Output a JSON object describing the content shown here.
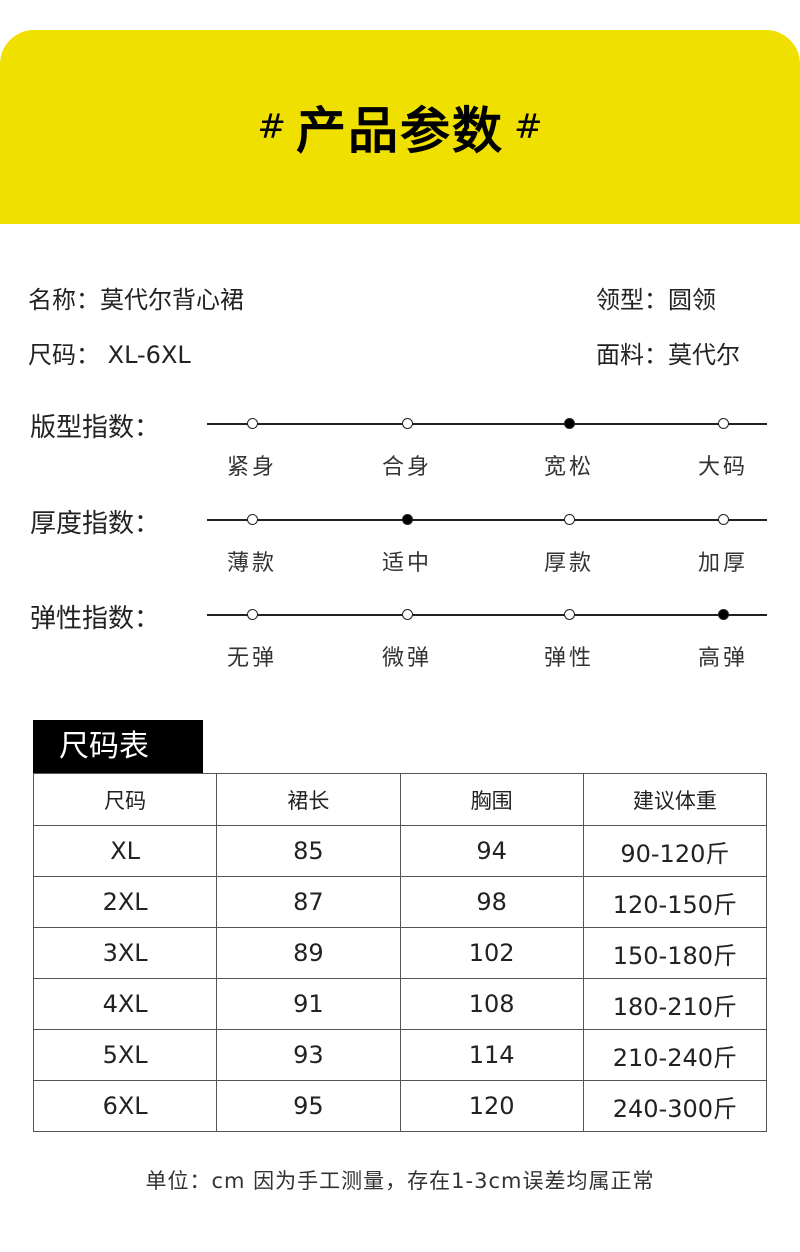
{
  "header": {
    "title": "产品参数",
    "hash": "#"
  },
  "info": {
    "name": "名称：莫代尔背心裙",
    "collar": "领型：圆领",
    "size": "尺码： XL-6XL",
    "fabric": "面料：莫代尔"
  },
  "scales": [
    {
      "label": "版型指数：",
      "options": [
        "紧身",
        "合身",
        "宽松",
        "大码"
      ],
      "selected": 2
    },
    {
      "label": "厚度指数：",
      "options": [
        "薄款",
        "适中",
        "厚款",
        "加厚"
      ],
      "selected": 1
    },
    {
      "label": "弹性指数：",
      "options": [
        "无弹",
        "微弹",
        "弹性",
        "高弹"
      ],
      "selected": 3
    }
  ],
  "size_table": {
    "title": "尺码表",
    "headers": [
      "尺码",
      "裙长",
      "胸围",
      "建议体重"
    ],
    "rows": [
      [
        "XL",
        "85",
        "94",
        "90-120斤"
      ],
      [
        "2XL",
        "87",
        "98",
        "120-150斤"
      ],
      [
        "3XL",
        "89",
        "102",
        "150-180斤"
      ],
      [
        "4XL",
        "91",
        "108",
        "180-210斤"
      ],
      [
        "5XL",
        "93",
        "114",
        "210-240斤"
      ],
      [
        "6XL",
        "95",
        "120",
        "240-300斤"
      ]
    ]
  },
  "footer": "单位：cm 因为手工测量，存在1-3cm误差均属正常",
  "colors": {
    "accent": "#efe000"
  }
}
